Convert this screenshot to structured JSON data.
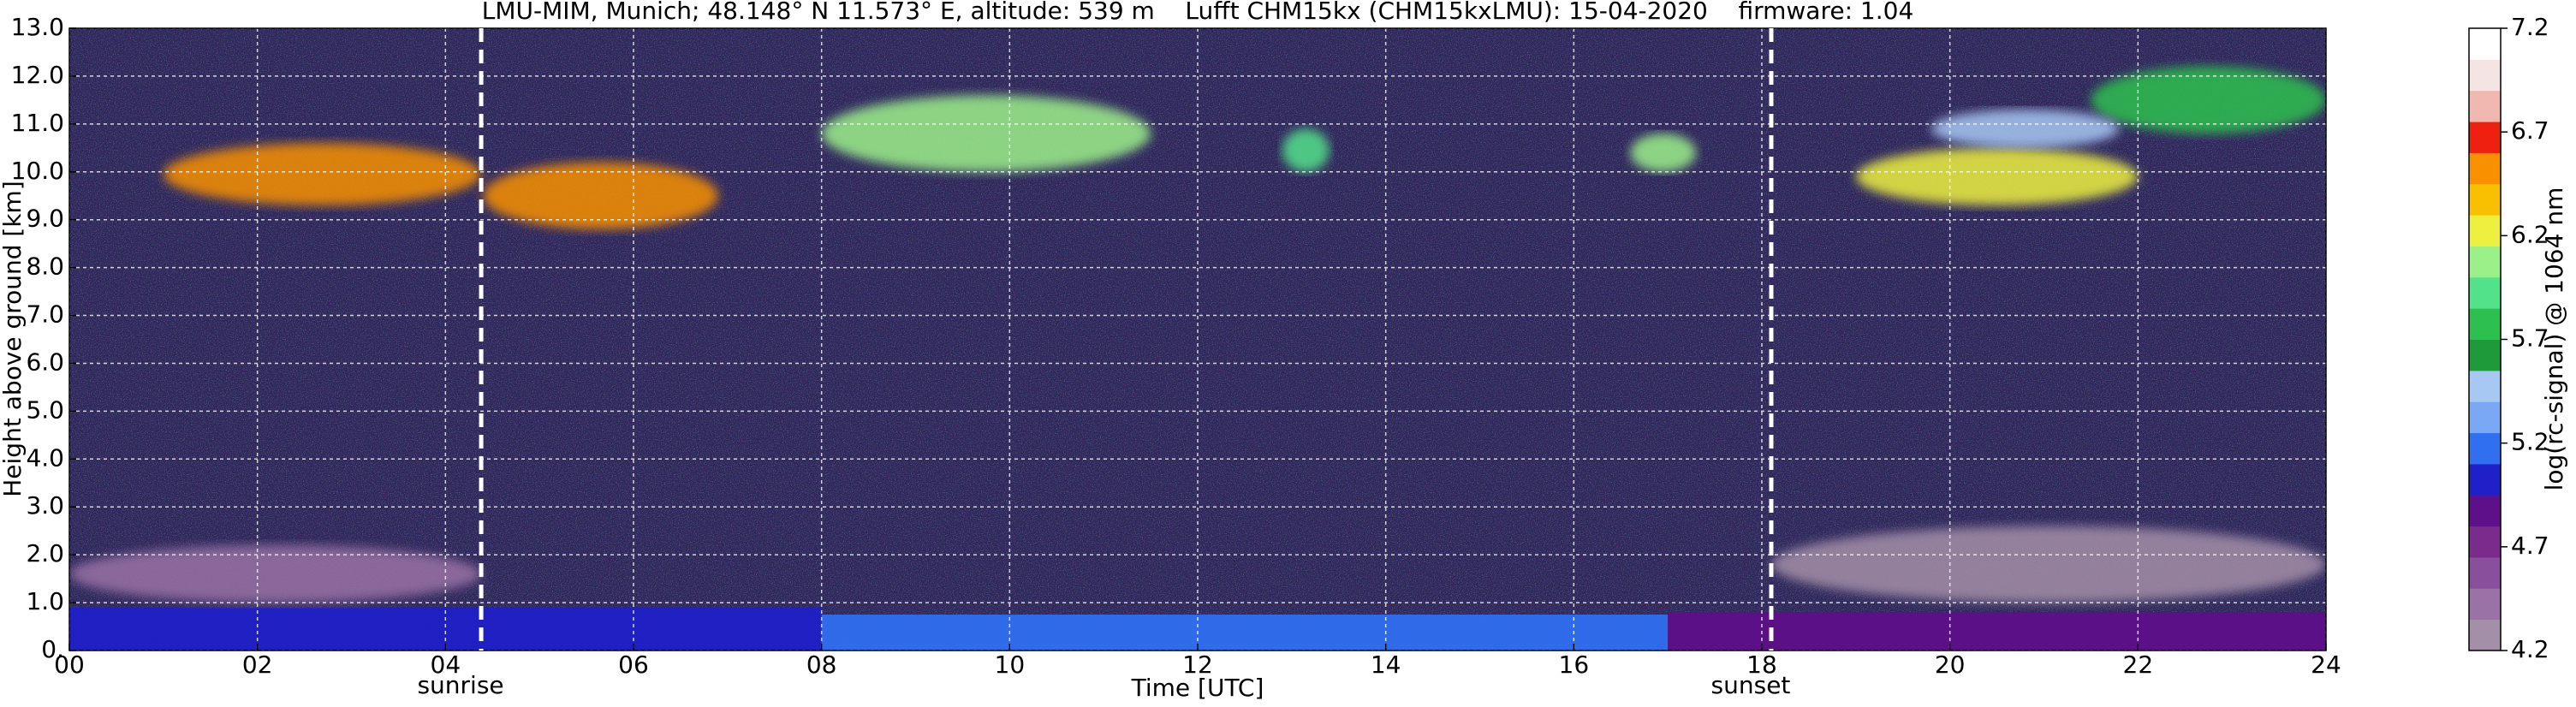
{
  "chart_data": {
    "type": "heatmap",
    "title": "LMU-MIM, Munich; 48.148° N 11.573° E, altitude: 539 m    Lufft CHM15kx (CHM15kxLMU): 15-04-2020    firmware: 1.04",
    "x_label": "Time [UTC]",
    "y_label": "Height above ground [km]",
    "colorbar_label": "log(rc-signal) @ 1064 nm",
    "xlim": [
      0,
      24
    ],
    "xticks": [
      {
        "value": 0,
        "label": "00"
      },
      {
        "value": 2,
        "label": "02"
      },
      {
        "value": 4,
        "label": "04"
      },
      {
        "value": 6,
        "label": "06"
      },
      {
        "value": 8,
        "label": "08"
      },
      10,
      12,
      14,
      16,
      18,
      20,
      22,
      24
    ],
    "ylim": [
      0,
      13
    ],
    "yticks": [
      {
        "value": 0,
        "label": "0."
      },
      {
        "value": 1,
        "label": "1.0"
      },
      {
        "value": 2,
        "label": "2.0"
      },
      {
        "value": 3,
        "label": "3.0"
      },
      {
        "value": 4,
        "label": "4.0"
      },
      {
        "value": 5,
        "label": "5.0"
      },
      {
        "value": 6,
        "label": "6.0"
      },
      {
        "value": 7,
        "label": "7.0"
      },
      {
        "value": 8,
        "label": "8.0"
      },
      {
        "value": 9,
        "label": "9.0"
      },
      {
        "value": 10,
        "label": "10.0"
      },
      {
        "value": 11,
        "label": "11.0"
      },
      {
        "value": 12,
        "label": "12.0"
      },
      {
        "value": 13,
        "label": "13.0"
      }
    ],
    "clim": [
      4.2,
      7.2
    ],
    "cticks": [
      4.2,
      4.7,
      5.2,
      5.7,
      6.2,
      6.7,
      7.2
    ],
    "colors": [
      "#a48fa8",
      "#9a72a6",
      "#8a4f9c",
      "#7a2c8c",
      "#5e0f8a",
      "#2020c8",
      "#2f6ff0",
      "#7aa8f4",
      "#a8c8f4",
      "#1f9a3a",
      "#2dc04f",
      "#52e28a",
      "#9cf08a",
      "#eef040",
      "#f8c000",
      "#f89000",
      "#f02010",
      "#f0b8b0",
      "#f4e4e4",
      "#ffffff"
    ],
    "grid": true,
    "regions": [
      {
        "x": [
          0,
          8
        ],
        "y": [
          0,
          0.9
        ],
        "value": 4.95
      },
      {
        "x": [
          8,
          17
        ],
        "y": [
          0,
          0.75
        ],
        "value": 5.15
      },
      {
        "x": [
          17,
          24
        ],
        "y": [
          0,
          0.8
        ],
        "value": 4.9
      },
      {
        "x": [
          0,
          4.38
        ],
        "y": [
          1.0,
          2.2
        ],
        "value": 4.4
      },
      {
        "x": [
          18.1,
          24
        ],
        "y": [
          1.0,
          2.6
        ],
        "value": 4.3
      },
      {
        "x": [
          1,
          4.38
        ],
        "y": [
          9.3,
          10.6
        ],
        "value": 6.5
      },
      {
        "x": [
          4.4,
          6.9
        ],
        "y": [
          8.8,
          10.2
        ],
        "value": 6.6
      },
      {
        "x": [
          8,
          11.5
        ],
        "y": [
          10,
          11.6
        ],
        "value": 6.0
      },
      {
        "x": [
          12.9,
          13.4
        ],
        "y": [
          10,
          10.9
        ],
        "value": 5.9
      },
      {
        "x": [
          16.6,
          17.3
        ],
        "y": [
          10,
          10.8
        ],
        "value": 6.0
      },
      {
        "x": [
          19,
          22
        ],
        "y": [
          9.3,
          10.5
        ],
        "value": 6.3
      },
      {
        "x": [
          21.5,
          24
        ],
        "y": [
          10.8,
          12.2
        ],
        "value": 5.7
      },
      {
        "x": [
          19.8,
          21.8
        ],
        "y": [
          10.5,
          11.3
        ],
        "value": 5.5
      }
    ],
    "events": [
      {
        "name": "sunrise",
        "x": 4.38
      },
      {
        "name": "sunset",
        "x": 18.1
      }
    ]
  }
}
